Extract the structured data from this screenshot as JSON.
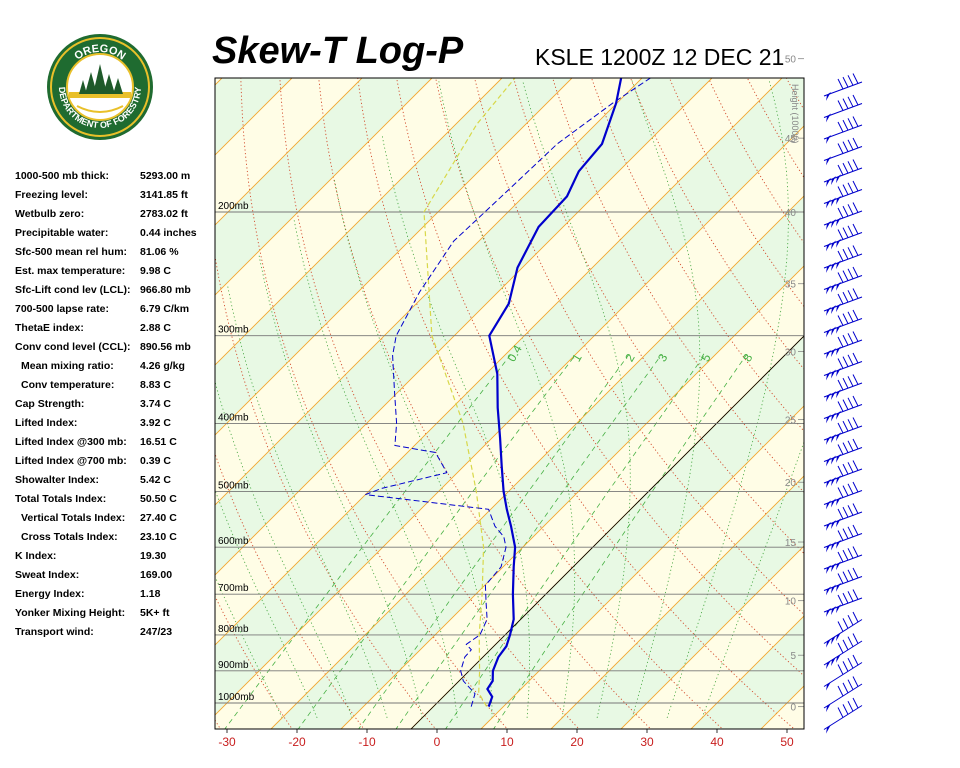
{
  "header": {
    "title": "Skew-T Log-P",
    "station": "KSLE 1200Z 12 DEC 21"
  },
  "logo": {
    "top_text": "OREGON",
    "bottom_text": "DEPARTMENT OF FORESTRY",
    "colors": {
      "ring": "#1f6b30",
      "gold": "#e9c02a",
      "tree": "#1f5a2a"
    }
  },
  "indices": [
    {
      "label": "1000-500 mb thick:",
      "value": "5293.00 m",
      "indent": false
    },
    {
      "label": "Freezing level:",
      "value": "3141.85 ft",
      "indent": false
    },
    {
      "label": "Wetbulb zero:",
      "value": "2783.02 ft",
      "indent": false
    },
    {
      "label": "Precipitable water:",
      "value": "0.44 inches",
      "indent": false
    },
    {
      "label": "Sfc-500 mean rel hum:",
      "value": "81.06 %",
      "indent": false
    },
    {
      "label": "Est. max temperature:",
      "value": "9.98 C",
      "indent": false
    },
    {
      "label": "Sfc-Lift cond lev (LCL):",
      "value": "966.80 mb",
      "indent": false
    },
    {
      "label": "700-500 lapse rate:",
      "value": "6.79 C/km",
      "indent": false
    },
    {
      "label": "ThetaE index:",
      "value": "2.88 C",
      "indent": false
    },
    {
      "label": "Conv cond level (CCL):",
      "value": "890.56 mb",
      "indent": false
    },
    {
      "label": "Mean mixing ratio:",
      "value": "4.26 g/kg",
      "indent": true
    },
    {
      "label": "Conv temperature:",
      "value": "8.83 C",
      "indent": true
    },
    {
      "label": "Cap Strength:",
      "value": "3.74 C",
      "indent": false
    },
    {
      "label": "Lifted Index:",
      "value": "3.92 C",
      "indent": false
    },
    {
      "label": "Lifted Index @300 mb:",
      "value": "16.51 C",
      "indent": false
    },
    {
      "label": "Lifted Index @700 mb:",
      "value": "0.39 C",
      "indent": false
    },
    {
      "label": "Showalter Index:",
      "value": "5.42 C",
      "indent": false
    },
    {
      "label": "Total Totals Index:",
      "value": "50.50 C",
      "indent": false
    },
    {
      "label": "Vertical Totals Index:",
      "value": "27.40 C",
      "indent": true
    },
    {
      "label": "Cross Totals Index:",
      "value": "23.10 C",
      "indent": true
    },
    {
      "label": "K Index:",
      "value": "19.30",
      "indent": false
    },
    {
      "label": "Sweat Index:",
      "value": "169.00",
      "indent": false
    },
    {
      "label": "Energy Index:",
      "value": "1.18",
      "indent": false
    },
    {
      "label": "Yonker Mixing Height:",
      "value": "5K+ ft",
      "indent": false
    },
    {
      "label": "Transport wind:",
      "value": "247/23",
      "indent": false
    }
  ],
  "chart_data": {
    "type": "line",
    "title": "Skew-T Log-P",
    "x_label": "",
    "y_label": "",
    "x_ticks": [
      "-30",
      "-20",
      "-10",
      "0",
      "10",
      "20",
      "30",
      "40",
      "50"
    ],
    "x_tick_values": [
      -30,
      -20,
      -10,
      0,
      10,
      20,
      30,
      40,
      50
    ],
    "pressure_levels": [
      {
        "p": 200,
        "label": "200mb"
      },
      {
        "p": 300,
        "label": "300mb"
      },
      {
        "p": 400,
        "label": "400mb"
      },
      {
        "p": 500,
        "label": "500mb"
      },
      {
        "p": 600,
        "label": "600mb"
      },
      {
        "p": 700,
        "label": "700mb"
      },
      {
        "p": 800,
        "label": "800mb"
      },
      {
        "p": 900,
        "label": "900mb"
      },
      {
        "p": 1000,
        "label": "1000mb"
      }
    ],
    "height_axis": {
      "title": "Height (1000ft)",
      "ticks": [
        {
          "label": "0",
          "p": 1012
        },
        {
          "label": "5",
          "p": 855
        },
        {
          "label": "10",
          "p": 715
        },
        {
          "label": "15",
          "p": 590
        },
        {
          "label": "20",
          "p": 485
        },
        {
          "label": "25",
          "p": 395
        },
        {
          "label": "30",
          "p": 316
        },
        {
          "label": "35",
          "p": 253
        },
        {
          "label": "40",
          "p": 200
        },
        {
          "label": "45",
          "p": 157
        },
        {
          "label": "50",
          "p": 121
        }
      ]
    },
    "mixing_ratio_labels": [
      "0.4",
      "1",
      "2",
      "3",
      "5",
      "8"
    ],
    "temperature_profile": {
      "color": "#0000cc",
      "points": [
        {
          "p": 1012,
          "t": 7.9
        },
        {
          "p": 980,
          "t": 7.0
        },
        {
          "p": 955,
          "t": 5.2
        },
        {
          "p": 930,
          "t": 4.8
        },
        {
          "p": 900,
          "t": 3.4
        },
        {
          "p": 860,
          "t": 2.2
        },
        {
          "p": 830,
          "t": 1.8
        },
        {
          "p": 800,
          "t": 0.7
        },
        {
          "p": 760,
          "t": -1.0
        },
        {
          "p": 700,
          "t": -4.7
        },
        {
          "p": 640,
          "t": -8.5
        },
        {
          "p": 600,
          "t": -11.1
        },
        {
          "p": 560,
          "t": -14.7
        },
        {
          "p": 530,
          "t": -17.7
        },
        {
          "p": 500,
          "t": -20.7
        },
        {
          "p": 460,
          "t": -24.6
        },
        {
          "p": 420,
          "t": -28.8
        },
        {
          "p": 380,
          "t": -33.5
        },
        {
          "p": 340,
          "t": -38.4
        },
        {
          "p": 300,
          "t": -45.0
        },
        {
          "p": 270,
          "t": -46.8
        },
        {
          "p": 240,
          "t": -50.7
        },
        {
          "p": 210,
          "t": -53.5
        },
        {
          "p": 190,
          "t": -53.8
        },
        {
          "p": 175,
          "t": -55.7
        },
        {
          "p": 160,
          "t": -56.3
        },
        {
          "p": 140,
          "t": -60.1
        },
        {
          "p": 122,
          "t": -64.9
        },
        {
          "p": 110,
          "t": -68.0
        }
      ]
    },
    "dewpoint_profile": {
      "color": "#0000cc",
      "points": [
        {
          "p": 1012,
          "t": 5.4
        },
        {
          "p": 970,
          "t": 4.1
        },
        {
          "p": 930,
          "t": 0.6
        },
        {
          "p": 900,
          "t": -1.2
        },
        {
          "p": 860,
          "t": -2.6
        },
        {
          "p": 840,
          "t": -2.7
        },
        {
          "p": 825,
          "t": -4.2
        },
        {
          "p": 800,
          "t": -3.6
        },
        {
          "p": 760,
          "t": -4.8
        },
        {
          "p": 720,
          "t": -7.3
        },
        {
          "p": 680,
          "t": -9.9
        },
        {
          "p": 640,
          "t": -10.3
        },
        {
          "p": 600,
          "t": -12.4
        },
        {
          "p": 580,
          "t": -14.2
        },
        {
          "p": 560,
          "t": -17.0
        },
        {
          "p": 530,
          "t": -20.3
        },
        {
          "p": 505,
          "t": -40.0
        },
        {
          "p": 495,
          "t": -38.6
        },
        {
          "p": 470,
          "t": -31.5
        },
        {
          "p": 440,
          "t": -36.0
        },
        {
          "p": 430,
          "t": -42.8
        },
        {
          "p": 400,
          "t": -45.7
        },
        {
          "p": 360,
          "t": -50.6
        },
        {
          "p": 320,
          "t": -56.0
        },
        {
          "p": 300,
          "t": -58.3
        },
        {
          "p": 260,
          "t": -61.2
        },
        {
          "p": 220,
          "t": -63.6
        },
        {
          "p": 200,
          "t": -63.3
        },
        {
          "p": 180,
          "t": -63.0
        },
        {
          "p": 160,
          "t": -62.7
        },
        {
          "p": 140,
          "t": -60.6
        },
        {
          "p": 122,
          "t": -57.6
        },
        {
          "p": 110,
          "t": -56.5
        }
      ]
    },
    "parcel_profile": {
      "color": "#d8d84a",
      "points": [
        {
          "p": 1012,
          "t": 7.6
        },
        {
          "p": 967,
          "t": 4.5
        },
        {
          "p": 900,
          "t": 1.5
        },
        {
          "p": 800,
          "t": -3.7
        },
        {
          "p": 700,
          "t": -9.1
        },
        {
          "p": 600,
          "t": -15.6
        },
        {
          "p": 500,
          "t": -24.6
        },
        {
          "p": 400,
          "t": -36.2
        },
        {
          "p": 300,
          "t": -53.2
        },
        {
          "p": 200,
          "t": -72.0
        },
        {
          "p": 150,
          "t": -77.0
        },
        {
          "p": 115,
          "t": -79.0
        }
      ]
    },
    "legend": "none",
    "grid": true
  }
}
